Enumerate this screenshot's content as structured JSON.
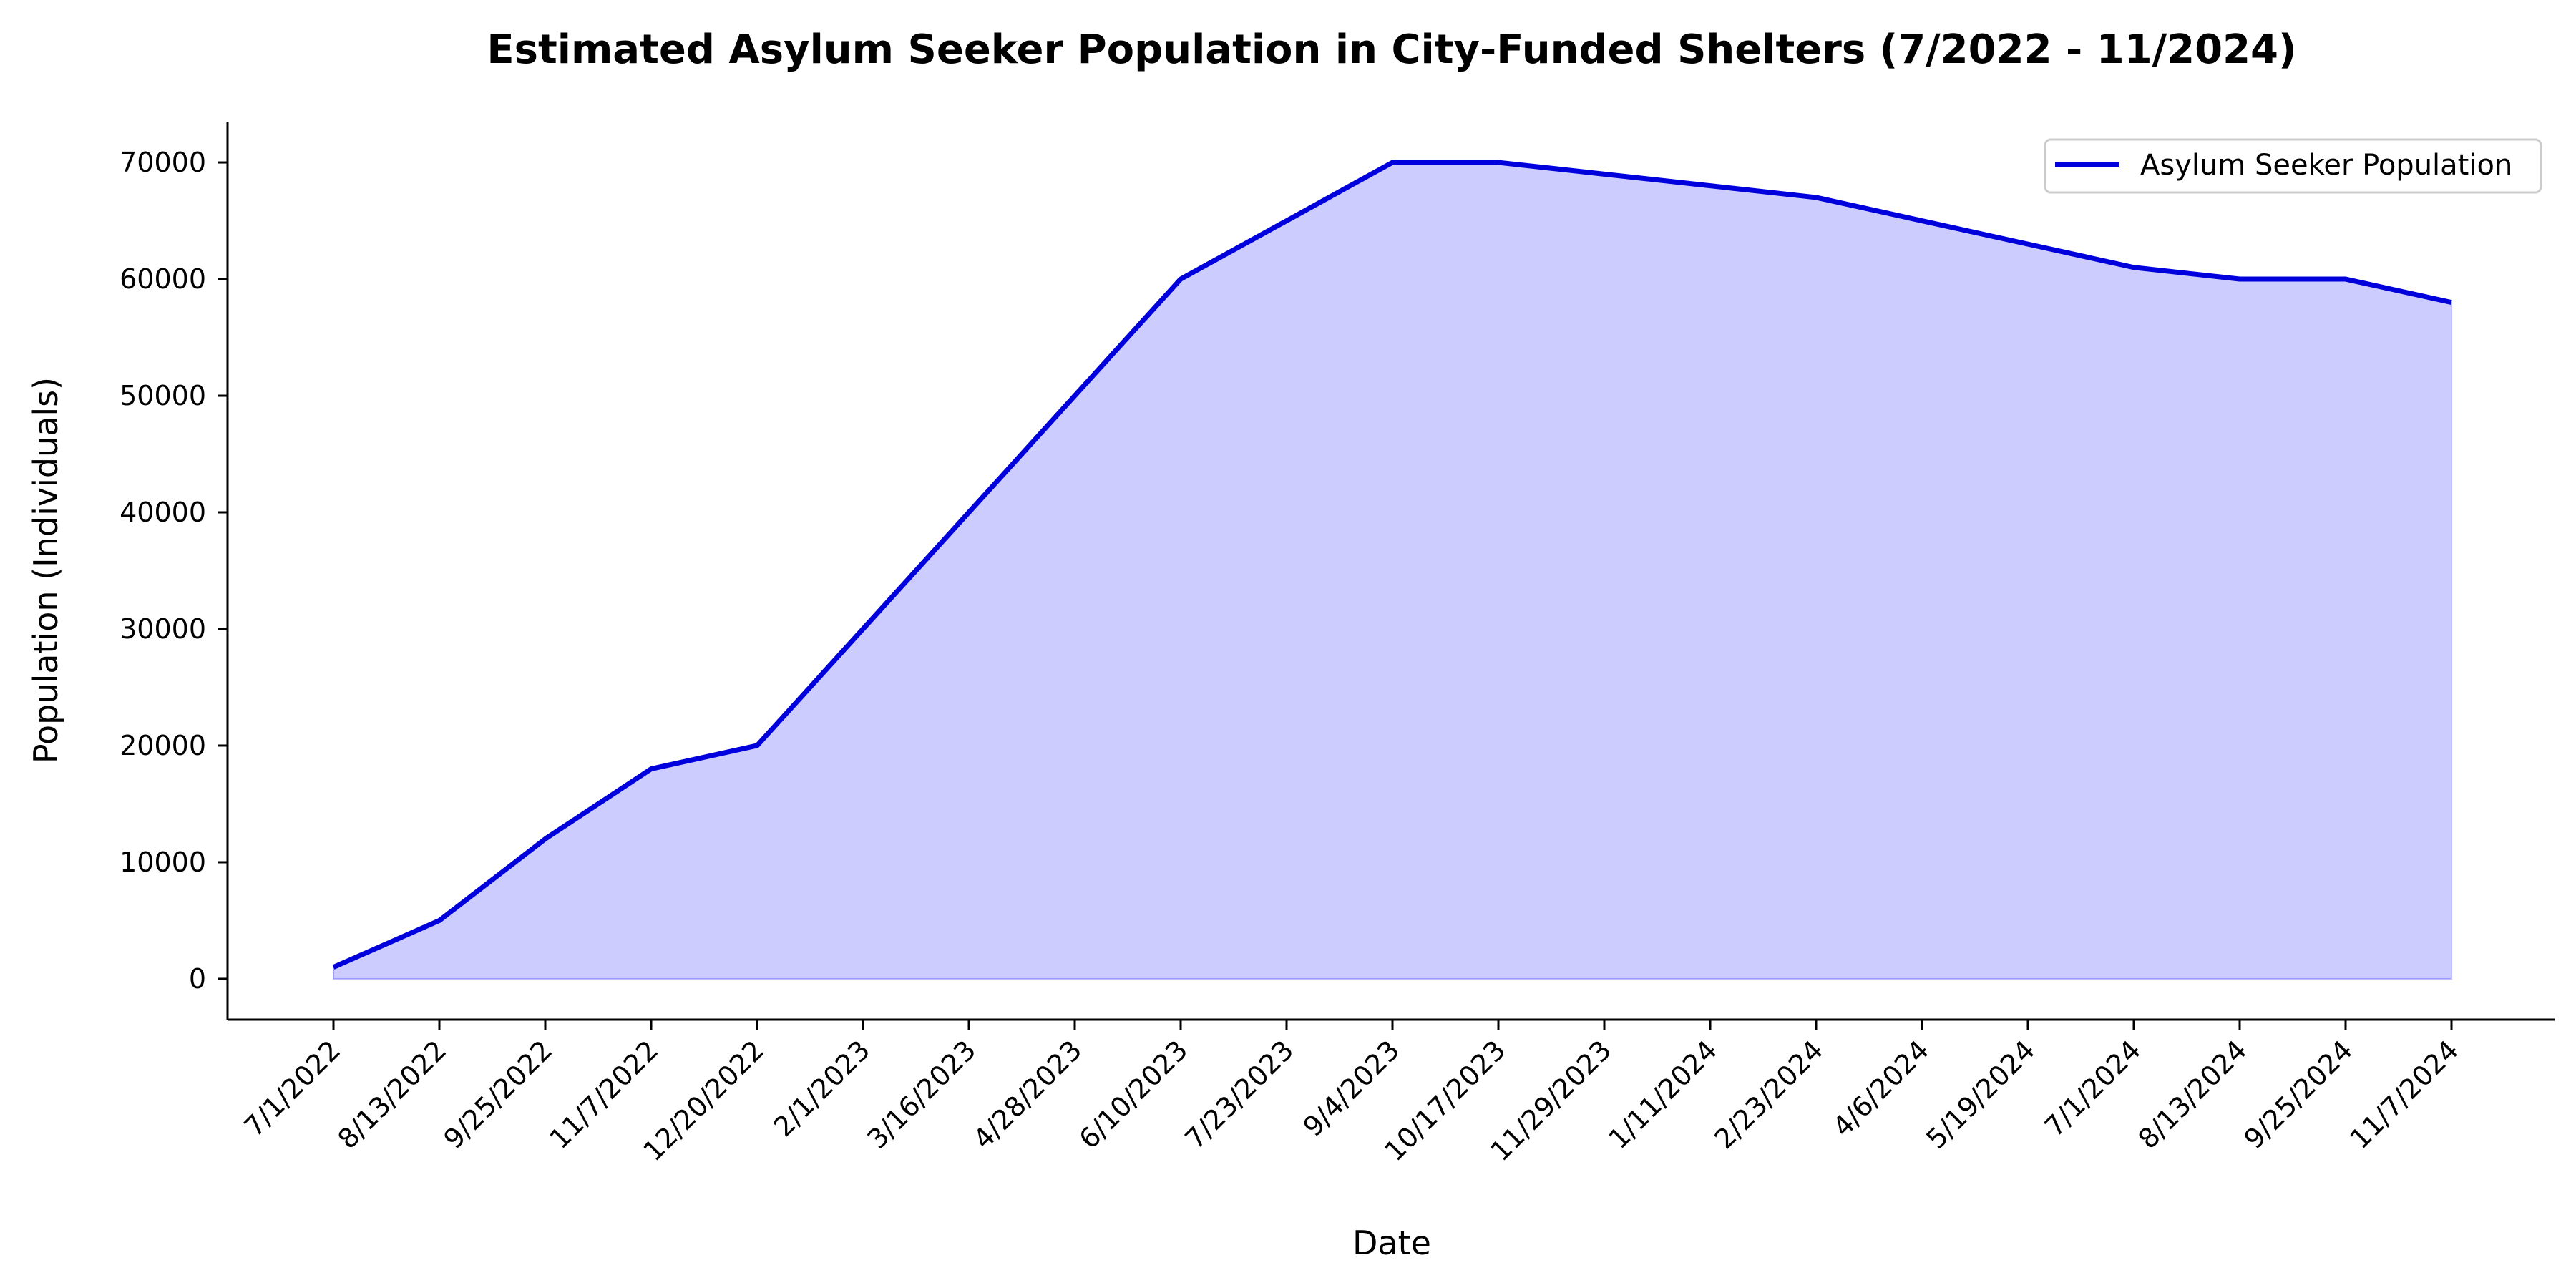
{
  "chart_data": {
    "type": "area",
    "title": "Estimated Asylum Seeker Population in City-Funded Shelters (7/2022 - 11/2024)",
    "xlabel": "Date",
    "ylabel": "Population (Individuals)",
    "x_tick_labels": [
      "7/1/2022",
      "8/13/2022",
      "9/25/2022",
      "11/7/2022",
      "12/20/2022",
      "2/1/2023",
      "3/16/2023",
      "4/28/2023",
      "6/10/2023",
      "7/23/2023",
      "9/4/2023",
      "10/17/2023",
      "11/29/2023",
      "1/11/2024",
      "2/23/2024",
      "4/6/2024",
      "5/19/2024",
      "7/1/2024",
      "8/13/2024",
      "9/25/2024",
      "11/7/2024"
    ],
    "y_ticks": [
      0,
      10000,
      20000,
      30000,
      40000,
      50000,
      60000,
      70000
    ],
    "ylim": [
      -3500,
      73500
    ],
    "legend_position": "top-right",
    "grid": false,
    "series": [
      {
        "name": "Asylum Seeker Population",
        "color": "#0000dd",
        "fill_color": "#0000ff",
        "fill_opacity": 0.2,
        "x": [
          "7/1/2022",
          "8/13/2022",
          "9/25/2022",
          "11/7/2022",
          "12/20/2022",
          "2/1/2023",
          "3/16/2023",
          "4/28/2023",
          "6/10/2023",
          "7/23/2023",
          "9/4/2023",
          "10/17/2023",
          "11/29/2023",
          "1/11/2024",
          "2/23/2024",
          "4/6/2024",
          "5/19/2024",
          "7/1/2024",
          "8/13/2024",
          "9/25/2024",
          "11/7/2024"
        ],
        "values": [
          1000,
          5000,
          12000,
          18000,
          20000,
          30000,
          40000,
          50000,
          60000,
          65000,
          70000,
          70000,
          69000,
          68000,
          67000,
          65000,
          63000,
          61000,
          60000,
          60000,
          58000
        ]
      }
    ]
  }
}
